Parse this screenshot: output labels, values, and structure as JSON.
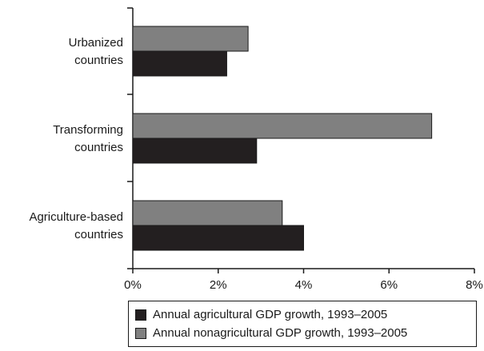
{
  "chart_data": {
    "type": "bar",
    "orientation": "horizontal",
    "categories": [
      [
        "Urbanized",
        "countries"
      ],
      [
        "Transforming",
        "countries"
      ],
      [
        "Agriculture-based",
        "countries"
      ]
    ],
    "series": [
      {
        "name": "Annual agricultural GDP growth, 1993–2005",
        "color": "#231f20",
        "values": [
          2.2,
          2.9,
          4.0
        ]
      },
      {
        "name": "Annual nonagricultural GDP growth, 1993–2005",
        "color": "#808080",
        "values": [
          2.7,
          7.0,
          3.5
        ]
      }
    ],
    "xticks": [
      "0%",
      "2%",
      "4%",
      "6%",
      "8%"
    ],
    "xlim": [
      0,
      8
    ],
    "grid": false,
    "legend_position": "bottom-right"
  }
}
